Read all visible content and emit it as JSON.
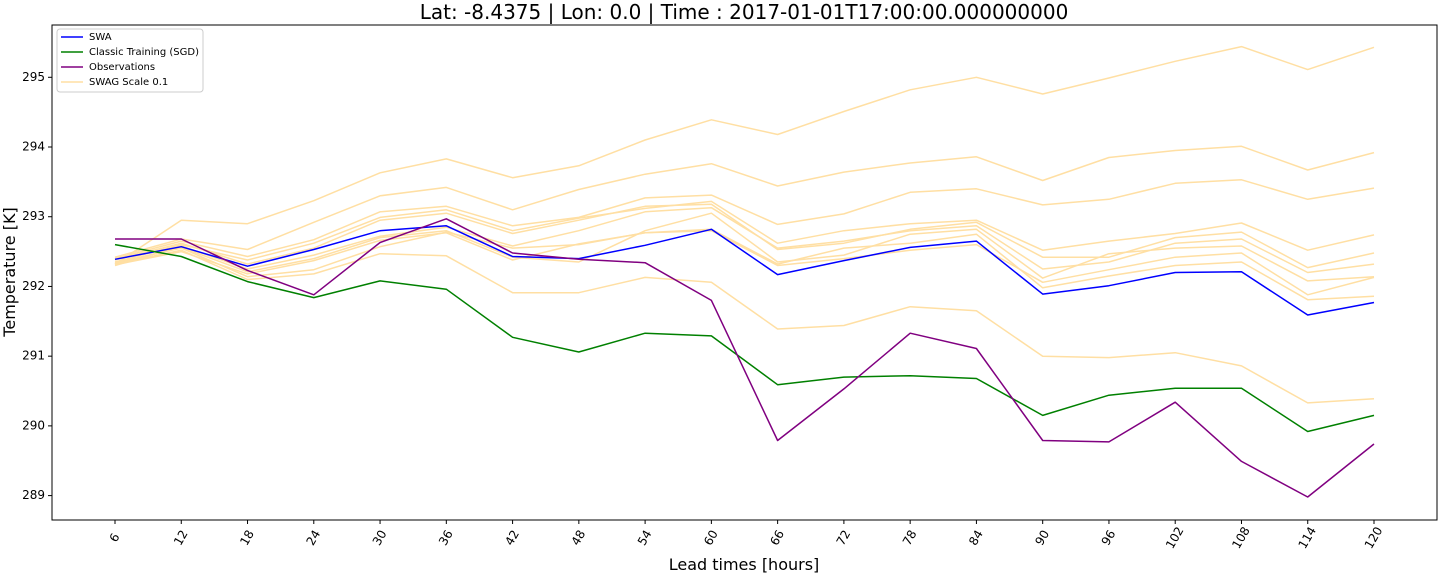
{
  "chart_data": {
    "type": "line",
    "title": "Lat: -8.4375 |  Lon: 0.0 | Time : 2017-01-01T17:00:00.000000000",
    "xlabel": "Lead times [hours]",
    "ylabel": "Temperature [K]",
    "x": [
      6,
      12,
      18,
      24,
      30,
      36,
      42,
      48,
      54,
      60,
      66,
      72,
      78,
      84,
      90,
      96,
      102,
      108,
      114,
      120
    ],
    "x_tick_labels": [
      "6",
      "12",
      "18",
      "24",
      "30",
      "36",
      "42",
      "48",
      "54",
      "60",
      "66",
      "72",
      "78",
      "84",
      "90",
      "96",
      "102",
      "108",
      "114",
      "120"
    ],
    "y_ticks": [
      289,
      290,
      291,
      292,
      293,
      294,
      295
    ],
    "ylim": [
      288.65,
      295.75
    ],
    "grid": false,
    "legend_position": "top-left",
    "colors": {
      "swa": "#0000ff",
      "sgd": "#008000",
      "obs": "#800080",
      "swag": "#ffdfa3"
    },
    "series": [
      {
        "name": "SWAG Scale 0.1",
        "color_key": "swag",
        "in_legend": true,
        "values": [
          292.32,
          292.95,
          292.9,
          293.23,
          293.63,
          293.83,
          293.56,
          293.73,
          294.1,
          294.39,
          294.18,
          294.51,
          294.82,
          295.0,
          294.76,
          294.99,
          295.23,
          295.44,
          295.11,
          295.43
        ]
      },
      {
        "name": "",
        "color_key": "swag",
        "in_legend": false,
        "values": [
          292.42,
          292.68,
          292.53,
          292.92,
          293.3,
          293.42,
          293.1,
          293.39,
          293.61,
          293.76,
          293.44,
          293.64,
          293.77,
          293.86,
          293.52,
          293.85,
          293.95,
          294.01,
          293.67,
          293.92
        ]
      },
      {
        "name": "",
        "color_key": "swag",
        "in_legend": false,
        "values": [
          292.4,
          292.65,
          292.43,
          292.67,
          293.07,
          293.15,
          292.87,
          292.99,
          293.27,
          293.31,
          292.89,
          293.04,
          293.35,
          293.4,
          293.17,
          293.25,
          293.48,
          293.53,
          293.25,
          293.41
        ]
      },
      {
        "name": "",
        "color_key": "swag",
        "in_legend": false,
        "values": [
          292.35,
          292.6,
          292.38,
          292.62,
          292.99,
          293.1,
          292.8,
          292.98,
          293.12,
          293.22,
          292.62,
          292.8,
          292.9,
          292.95,
          292.52,
          292.65,
          292.76,
          292.91,
          292.52,
          292.74
        ]
      },
      {
        "name": "",
        "color_key": "swag",
        "in_legend": false,
        "values": [
          292.38,
          292.62,
          292.32,
          292.55,
          292.95,
          293.05,
          292.76,
          292.95,
          293.15,
          293.18,
          292.53,
          292.62,
          292.82,
          292.92,
          292.42,
          292.42,
          292.7,
          292.78,
          292.27,
          292.48
        ]
      },
      {
        "name": "",
        "color_key": "swag",
        "in_legend": false,
        "values": [
          292.3,
          292.58,
          292.25,
          292.45,
          292.72,
          292.85,
          292.58,
          292.8,
          293.07,
          293.13,
          292.55,
          292.65,
          292.8,
          292.87,
          292.25,
          292.35,
          292.62,
          292.68,
          292.2,
          292.32
        ]
      },
      {
        "name": "",
        "color_key": "swag",
        "in_legend": false,
        "values": [
          292.33,
          292.56,
          292.21,
          292.4,
          292.7,
          292.8,
          292.42,
          292.35,
          292.8,
          293.05,
          292.35,
          292.45,
          292.75,
          292.82,
          292.12,
          292.47,
          292.55,
          292.58,
          292.08,
          292.14
        ]
      },
      {
        "name": "",
        "color_key": "swag",
        "in_legend": false,
        "values": [
          292.31,
          292.5,
          292.18,
          292.37,
          292.66,
          292.77,
          292.38,
          292.61,
          292.77,
          292.8,
          292.3,
          292.4,
          292.52,
          292.6,
          292.06,
          292.24,
          292.42,
          292.48,
          291.88,
          292.13
        ]
      },
      {
        "name": "",
        "color_key": "swag",
        "in_legend": false,
        "values": [
          292.34,
          292.55,
          292.14,
          292.24,
          292.57,
          292.78,
          292.55,
          292.6,
          292.77,
          292.82,
          292.32,
          292.55,
          292.62,
          292.75,
          291.98,
          292.15,
          292.3,
          292.35,
          291.81,
          291.86
        ]
      },
      {
        "name": "",
        "color_key": "swag",
        "in_legend": false,
        "values": [
          292.32,
          292.52,
          292.1,
          292.18,
          292.47,
          292.44,
          291.91,
          291.91,
          292.13,
          292.06,
          291.39,
          291.44,
          291.71,
          291.65,
          291.0,
          290.98,
          291.05,
          290.86,
          290.33,
          290.39
        ]
      },
      {
        "name": "SWA",
        "color_key": "swa",
        "in_legend": true,
        "values": [
          292.39,
          292.57,
          292.29,
          292.53,
          292.8,
          292.87,
          292.43,
          292.4,
          292.59,
          292.82,
          292.17,
          292.37,
          292.56,
          292.65,
          291.89,
          292.01,
          292.2,
          292.21,
          291.59,
          291.77
        ]
      },
      {
        "name": "Classic Training (SGD)",
        "color_key": "sgd",
        "in_legend": true,
        "values": [
          292.6,
          292.43,
          292.07,
          291.84,
          292.08,
          291.96,
          291.27,
          291.06,
          291.33,
          291.29,
          290.59,
          290.7,
          290.72,
          290.68,
          290.15,
          290.44,
          290.54,
          290.54,
          289.92,
          290.15
        ]
      },
      {
        "name": "Observations",
        "color_key": "obs",
        "in_legend": true,
        "values": [
          292.68,
          292.68,
          292.23,
          291.88,
          292.63,
          292.97,
          292.48,
          292.39,
          292.34,
          291.8,
          289.79,
          290.53,
          291.33,
          291.11,
          289.79,
          289.77,
          290.34,
          289.49,
          288.98,
          289.74
        ]
      }
    ],
    "legend": [
      "SWA",
      "Classic Training (SGD)",
      "Observations",
      "SWAG Scale 0.1"
    ]
  }
}
